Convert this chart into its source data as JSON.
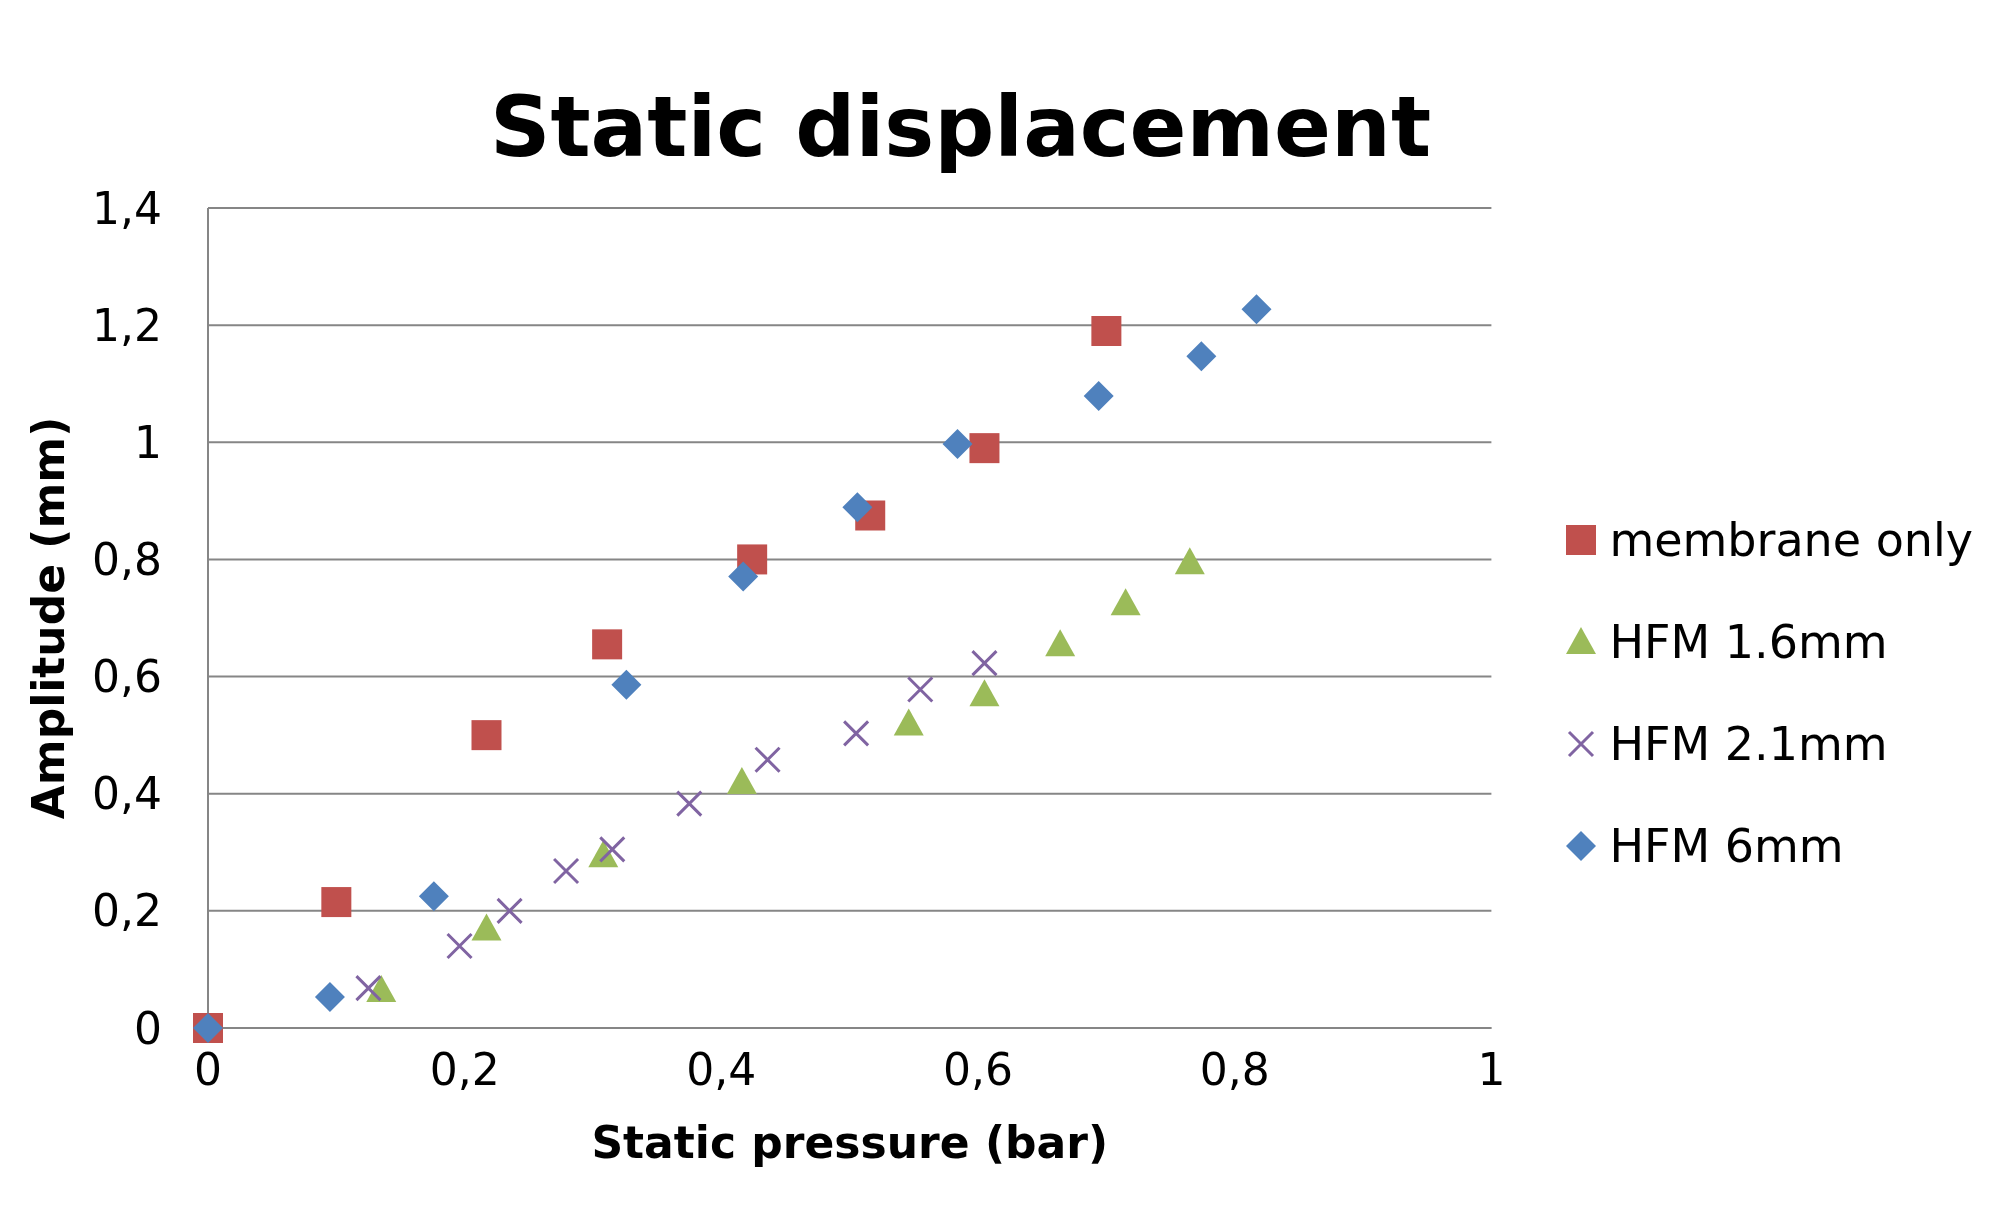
{
  "chart_data": {
    "type": "scatter",
    "title": "Static displacement",
    "xlabel": "Static pressure (bar)",
    "ylabel": "Amplitude (mm)",
    "xlim": [
      0,
      1
    ],
    "xticks": [
      0,
      {
        "value": 0.2,
        "label": "0,2"
      },
      {
        "value": 0.4,
        "label": "0,4"
      },
      {
        "value": 0.6,
        "label": "0,6"
      },
      {
        "value": 0.8,
        "label": "0,8"
      },
      1
    ],
    "ylim": [
      0,
      1.4
    ],
    "yticks": [
      0,
      {
        "value": 0.2,
        "label": "0,2"
      },
      {
        "value": 0.4,
        "label": "0,4"
      },
      {
        "value": 0.6,
        "label": "0,6"
      },
      {
        "value": 0.8,
        "label": "0,8"
      },
      1,
      {
        "value": 1.2,
        "label": "1,2"
      },
      {
        "value": 1.4,
        "label": "1,4"
      }
    ],
    "grid": "y",
    "legend": "right",
    "series": [
      {
        "name": "membrane only",
        "color": "#c0504d",
        "marker": "square",
        "x": [
          0,
          0.1,
          0.217,
          0.311,
          0.424,
          0.516,
          0.605,
          0.7
        ],
        "values": [
          0,
          0.215,
          0.5,
          0.655,
          0.8,
          0.875,
          0.99,
          1.19
        ]
      },
      {
        "name": "HFM 1.6mm",
        "color": "#9bbb59",
        "marker": "triangle",
        "x": [
          0.135,
          0.217,
          0.308,
          0.416,
          0.546,
          0.605,
          0.664,
          0.715,
          0.765
        ],
        "values": [
          0.065,
          0.17,
          0.295,
          0.42,
          0.52,
          0.57,
          0.655,
          0.725,
          0.795
        ]
      },
      {
        "name": "HFM 2.1mm",
        "color": "#8064a2",
        "marker": "cross",
        "x": [
          0.125,
          0.196,
          0.235,
          0.279,
          0.315,
          0.375,
          0.436,
          0.505,
          0.555,
          0.605
        ],
        "values": [
          0.068,
          0.14,
          0.2,
          0.268,
          0.305,
          0.383,
          0.458,
          0.503,
          0.578,
          0.623
        ]
      },
      {
        "name": "HFM 6mm",
        "color": "#4f81bd",
        "marker": "diamond",
        "x": [
          0,
          0.095,
          0.176,
          0.326,
          0.417,
          0.506,
          0.584,
          0.694,
          0.774,
          0.817
        ],
        "values": [
          0,
          0.053,
          0.225,
          0.586,
          0.771,
          0.889,
          0.997,
          1.079,
          1.147,
          1.227
        ]
      }
    ]
  }
}
